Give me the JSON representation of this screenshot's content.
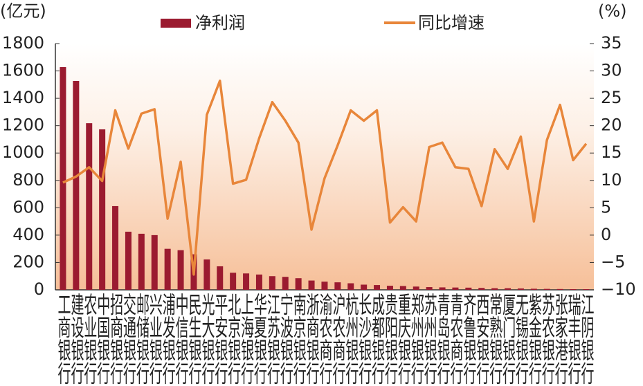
{
  "chart_data": {
    "type": "bar_line",
    "y_unit": "(亿元)",
    "y2_unit": "(%)",
    "categories": [
      "工商银行",
      "建设银行",
      "农业银行",
      "中国银行",
      "招商银行",
      "交通银行",
      "邮储银行",
      "兴业银行",
      "浦发银行",
      "中信银行",
      "民生银行",
      "光大银行",
      "平安银行",
      "北京银行",
      "上海银行",
      "华夏银行",
      "江苏银行",
      "宁波银行",
      "南京银行",
      "浙商银行",
      "渝农商行",
      "沪农商行",
      "杭州银行",
      "长沙银行",
      "成都银行",
      "贵阳银行",
      "重庆银行",
      "郑州银行",
      "苏州银行",
      "青岛银行",
      "青农商行",
      "齐鲁银行",
      "西安银行",
      "常熟银行",
      "厦门银行",
      "无锡银行",
      "紫金银行",
      "苏农银行",
      "张家港行",
      "瑞丰银行",
      "江阴银行"
    ],
    "series": [
      {
        "name": "净利润",
        "color": "#9b1b30",
        "type": "bar",
        "values": [
          1628,
          1527,
          1218,
          1173,
          612,
          425,
          410,
          400,
          300,
          290,
          260,
          222,
          172,
          125,
          120,
          112,
          100,
          95,
          85,
          68,
          60,
          55,
          48,
          38,
          35,
          30,
          28,
          24,
          20,
          18,
          17,
          16,
          14,
          12,
          12,
          10,
          8,
          7,
          6,
          5,
          5
        ]
      },
      {
        "name": "同比增速",
        "color": "#e8863a",
        "type": "line",
        "axis": "y2",
        "values": [
          9.6,
          10.7,
          12.4,
          9.9,
          22.8,
          15.8,
          22.2,
          23.0,
          3.0,
          13.4,
          -7.2,
          22.0,
          28.2,
          9.4,
          10.1,
          17.7,
          24.3,
          20.9,
          16.9,
          1.0,
          10.4,
          16.4,
          22.8,
          20.9,
          22.8,
          2.3,
          5.1,
          2.5,
          16.1,
          16.9,
          12.4,
          12.1,
          5.3,
          15.7,
          12.1,
          18.0,
          2.5,
          17.4,
          23.8,
          13.7,
          16.7
        ]
      }
    ],
    "ylim": [
      0,
      1800
    ],
    "yticks": [
      0,
      200,
      400,
      600,
      800,
      1000,
      1200,
      1400,
      1600,
      1800
    ],
    "y2lim": [
      -10,
      35
    ],
    "y2ticks": [
      {
        "value": -10,
        "label": "−10"
      },
      {
        "value": -5,
        "label": "−5"
      },
      0,
      5,
      10,
      15,
      20,
      25,
      30,
      35
    ]
  }
}
